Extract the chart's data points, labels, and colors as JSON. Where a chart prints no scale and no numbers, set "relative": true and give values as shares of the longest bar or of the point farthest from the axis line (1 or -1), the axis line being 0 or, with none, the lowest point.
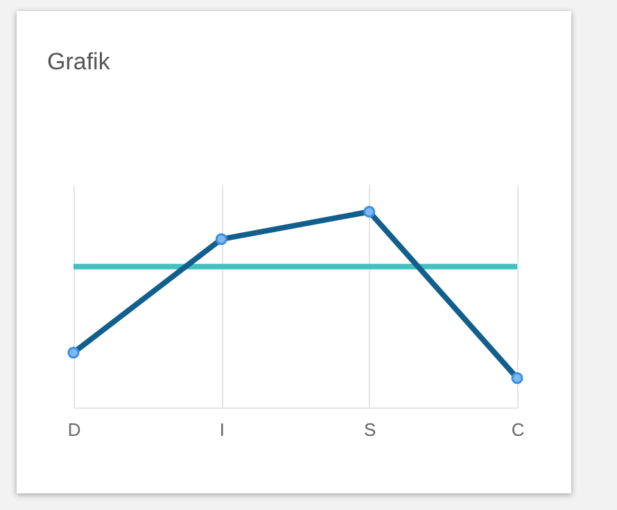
{
  "chart_data": {
    "type": "line",
    "title": "Grafik",
    "relative": true,
    "categories": [
      "D",
      "I",
      "S",
      "C"
    ],
    "series": [
      {
        "color": "#125f8e",
        "values": [
          0.28,
          0.86,
          1,
          0.15
        ]
      }
    ],
    "ref_lines": [
      {
        "axis": "y",
        "value": 0.72,
        "color": "#45bfbf"
      }
    ],
    "marker": "circle",
    "grid": "x"
  }
}
